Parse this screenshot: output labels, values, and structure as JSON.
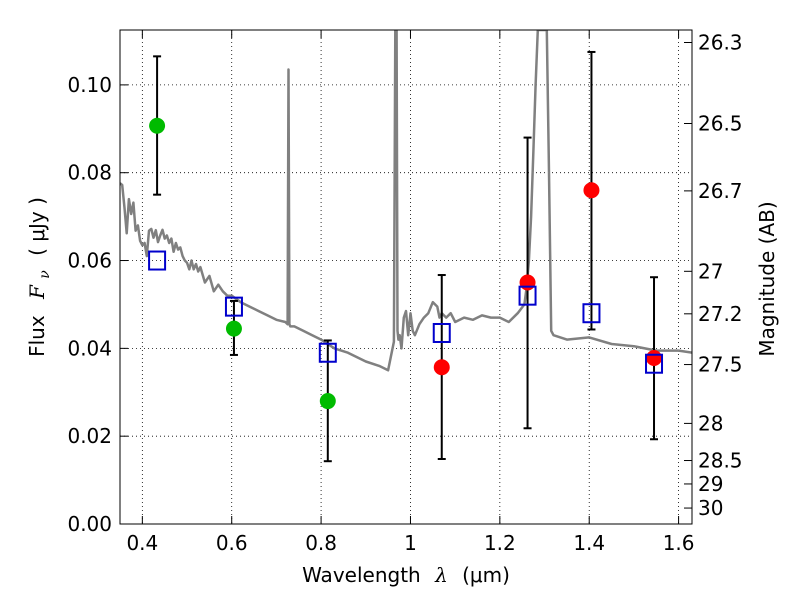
{
  "chart_data": {
    "type": "scatter",
    "xlabel": {
      "prefix": "Wavelength",
      "symbol": "λ",
      "unit": "(μm)"
    },
    "ylabel": {
      "prefix": "Flux",
      "symbol": "F",
      "subscript": "ν",
      "unit": "( μJy )"
    },
    "y2label": "Magnitude (AB)",
    "xlim": [
      0.35,
      1.63
    ],
    "ylim": [
      0.0,
      0.1125
    ],
    "grid": true,
    "x_ticks": [
      {
        "v": 0.4,
        "label": "0.4"
      },
      {
        "v": 0.6,
        "label": "0.6"
      },
      {
        "v": 0.8,
        "label": "0.8"
      },
      {
        "v": 1.0,
        "label": "1"
      },
      {
        "v": 1.2,
        "label": "1.2"
      },
      {
        "v": 1.4,
        "label": "1.4"
      },
      {
        "v": 1.6,
        "label": "1.6"
      }
    ],
    "y_ticks": [
      {
        "v": 0.0,
        "label": "0.00"
      },
      {
        "v": 0.02,
        "label": "0.02"
      },
      {
        "v": 0.04,
        "label": "0.04"
      },
      {
        "v": 0.06,
        "label": "0.06"
      },
      {
        "v": 0.08,
        "label": "0.08"
      },
      {
        "v": 0.1,
        "label": "0.10"
      }
    ],
    "mag_ticks": [
      {
        "mag": 26.3,
        "label": "26.3"
      },
      {
        "mag": 26.5,
        "label": "26.5"
      },
      {
        "mag": 26.7,
        "label": "26.7"
      },
      {
        "mag": 27.0,
        "label": "27"
      },
      {
        "mag": 27.2,
        "label": "27.2"
      },
      {
        "mag": 27.5,
        "label": "27.5"
      },
      {
        "mag": 28.0,
        "label": "28"
      },
      {
        "mag": 28.5,
        "label": "28.5"
      },
      {
        "mag": 29.0,
        "label": "29"
      },
      {
        "mag": 30.0,
        "label": "30"
      }
    ],
    "model_spectrum": {
      "color": "#808080",
      "x": [
        0.35,
        0.355,
        0.36,
        0.365,
        0.37,
        0.375,
        0.38,
        0.385,
        0.39,
        0.395,
        0.4,
        0.405,
        0.41,
        0.415,
        0.42,
        0.425,
        0.43,
        0.435,
        0.44,
        0.445,
        0.45,
        0.455,
        0.46,
        0.465,
        0.47,
        0.475,
        0.48,
        0.485,
        0.49,
        0.495,
        0.5,
        0.505,
        0.51,
        0.515,
        0.52,
        0.525,
        0.53,
        0.54,
        0.55,
        0.56,
        0.57,
        0.58,
        0.59,
        0.6,
        0.62,
        0.64,
        0.66,
        0.68,
        0.7,
        0.72,
        0.725,
        0.727,
        0.729,
        0.731,
        0.74,
        0.76,
        0.78,
        0.8,
        0.83,
        0.86,
        0.9,
        0.93,
        0.95,
        0.963,
        0.966,
        0.967,
        0.969,
        0.971,
        0.973,
        0.976,
        0.98,
        0.985,
        0.99,
        0.995,
        1.0,
        1.005,
        1.01,
        1.02,
        1.03,
        1.04,
        1.05,
        1.06,
        1.065,
        1.07,
        1.08,
        1.09,
        1.1,
        1.12,
        1.14,
        1.16,
        1.18,
        1.2,
        1.22,
        1.24,
        1.255,
        1.26,
        1.265,
        1.27,
        1.275,
        1.28,
        1.285,
        1.29,
        1.3,
        1.305,
        1.31,
        1.315,
        1.32,
        1.35,
        1.4,
        1.45,
        1.5,
        1.55,
        1.6,
        1.63
      ],
      "y": [
        0.0776,
        0.0772,
        0.072,
        0.0662,
        0.074,
        0.0706,
        0.0732,
        0.0668,
        0.068,
        0.0645,
        0.0635,
        0.064,
        0.061,
        0.0668,
        0.0672,
        0.0652,
        0.0669,
        0.0642,
        0.0657,
        0.067,
        0.065,
        0.0657,
        0.064,
        0.065,
        0.062,
        0.064,
        0.0625,
        0.063,
        0.061,
        0.06,
        0.0595,
        0.058,
        0.06,
        0.058,
        0.0592,
        0.0575,
        0.0585,
        0.055,
        0.0565,
        0.053,
        0.0545,
        0.053,
        0.052,
        0.052,
        0.0505,
        0.0495,
        0.0485,
        0.0475,
        0.0465,
        0.046,
        0.0455,
        0.1035,
        0.0455,
        0.045,
        0.045,
        0.044,
        0.043,
        0.042,
        0.04,
        0.039,
        0.037,
        0.036,
        0.035,
        0.0415,
        0.1125,
        0.076,
        0.1125,
        0.044,
        0.042,
        0.043,
        0.04,
        0.047,
        0.0485,
        0.043,
        0.048,
        0.044,
        0.043,
        0.0455,
        0.047,
        0.048,
        0.0505,
        0.0495,
        0.047,
        0.048,
        0.047,
        0.048,
        0.046,
        0.047,
        0.0465,
        0.0475,
        0.047,
        0.047,
        0.046,
        0.048,
        0.05,
        0.054,
        0.06,
        0.07,
        0.085,
        0.1,
        0.1125,
        0.1125,
        0.1125,
        0.1125,
        0.08,
        0.044,
        0.043,
        0.042,
        0.0425,
        0.041,
        0.0405,
        0.0395,
        0.0395,
        0.039
      ]
    },
    "series": [
      {
        "marker": "circle",
        "color": "#00bb00",
        "points": [
          {
            "x": 0.433,
            "y": 0.0907,
            "lo": 0.075,
            "hi": 0.1065
          },
          {
            "x": 0.605,
            "y": 0.0445,
            "lo": 0.0385,
            "hi": 0.0508
          },
          {
            "x": 0.815,
            "y": 0.028,
            "lo": 0.0143,
            "hi": 0.0418
          }
        ]
      },
      {
        "marker": "circle",
        "color": "#ff0000",
        "points": [
          {
            "x": 1.07,
            "y": 0.0357,
            "lo": 0.0148,
            "hi": 0.0567
          },
          {
            "x": 1.262,
            "y": 0.055,
            "lo": 0.0218,
            "hi": 0.088
          },
          {
            "x": 1.405,
            "y": 0.076,
            "lo": 0.0443,
            "hi": 0.1075
          },
          {
            "x": 1.545,
            "y": 0.0378,
            "lo": 0.0193,
            "hi": 0.0562
          }
        ]
      },
      {
        "marker": "square-open",
        "color": "#0000cc",
        "points": [
          {
            "x": 0.433,
            "y": 0.06
          },
          {
            "x": 0.605,
            "y": 0.0495
          },
          {
            "x": 0.815,
            "y": 0.039
          },
          {
            "x": 1.07,
            "y": 0.0435
          },
          {
            "x": 1.262,
            "y": 0.052
          },
          {
            "x": 1.405,
            "y": 0.048
          },
          {
            "x": 1.545,
            "y": 0.0365
          }
        ]
      }
    ]
  }
}
